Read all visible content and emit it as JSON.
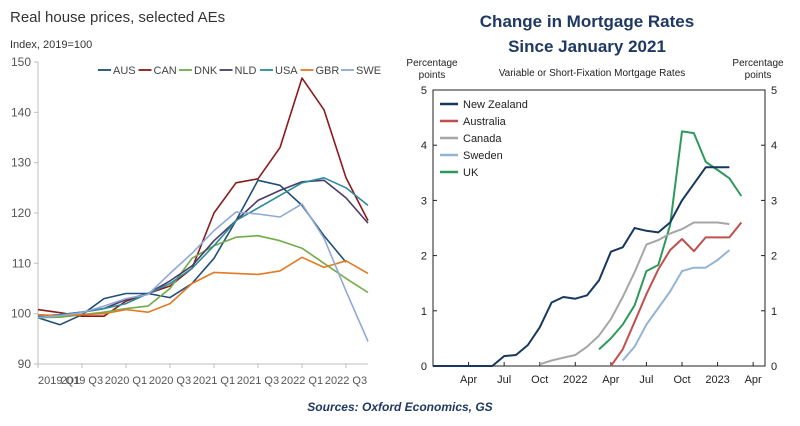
{
  "caption": "Sources: Oxford Economics, GS",
  "chart_data": [
    {
      "type": "line",
      "title": "Real house prices, selected AEs",
      "ylabel": "Index, 2019=100",
      "ylim": [
        90,
        150
      ],
      "yticks": [
        90,
        100,
        110,
        120,
        130,
        140,
        150
      ],
      "x_tick_labels": [
        "2019 Q1",
        "2019 Q3",
        "2020 Q1",
        "2020 Q3",
        "2021 Q1",
        "2021 Q3",
        "2022 Q1",
        "2022 Q3"
      ],
      "x": [
        "2019 Q1",
        "2019 Q2",
        "2019 Q3",
        "2019 Q4",
        "2020 Q1",
        "2020 Q2",
        "2020 Q3",
        "2020 Q4",
        "2021 Q1",
        "2021 Q2",
        "2021 Q3",
        "2021 Q4",
        "2022 Q1",
        "2022 Q2",
        "2022 Q3",
        "2022 Q4"
      ],
      "legend_position": "top",
      "series": [
        {
          "name": "AUS",
          "color": "#1f4e79",
          "values": [
            99.2,
            97.8,
            99.8,
            103.0,
            104.0,
            104.0,
            103.2,
            106.0,
            111.0,
            118.5,
            126.5,
            125.5,
            121.5,
            115.5,
            110.2,
            null
          ]
        },
        {
          "name": "CAN",
          "color": "#8b1a1a",
          "values": [
            100.8,
            100.2,
            99.5,
            99.5,
            102.5,
            104.0,
            105.5,
            109.0,
            120.0,
            126.0,
            126.8,
            133.0,
            146.8,
            140.5,
            127.0,
            118.5
          ]
        },
        {
          "name": "DNK",
          "color": "#70ad47",
          "values": [
            99.2,
            99.3,
            99.8,
            100.3,
            101.0,
            101.5,
            105.0,
            111.0,
            113.5,
            115.2,
            115.5,
            114.5,
            113.0,
            110.0,
            107.0,
            104.2
          ]
        },
        {
          "name": "NLD",
          "color": "#4a3b6b",
          "values": [
            99.5,
            99.8,
            100.3,
            101.0,
            102.8,
            104.0,
            106.5,
            109.5,
            114.5,
            118.5,
            122.5,
            124.5,
            126.2,
            126.5,
            123.0,
            118.0
          ]
        },
        {
          "name": "USA",
          "color": "#2e8b9a",
          "values": [
            99.5,
            99.8,
            100.3,
            101.0,
            102.0,
            104.0,
            106.0,
            109.0,
            113.5,
            118.5,
            121.0,
            123.5,
            126.0,
            127.0,
            125.0,
            121.5
          ]
        },
        {
          "name": "GBR",
          "color": "#e07b24",
          "values": [
            99.8,
            99.6,
            99.8,
            100.0,
            100.8,
            100.3,
            102.0,
            106.0,
            108.2,
            108.0,
            107.8,
            108.5,
            111.2,
            109.2,
            110.5,
            108.0
          ]
        },
        {
          "name": "SWE",
          "color": "#8fa8d8",
          "values": [
            99.2,
            99.6,
            100.2,
            101.5,
            103.0,
            103.8,
            108.0,
            112.0,
            116.5,
            120.2,
            119.8,
            119.2,
            121.8,
            115.0,
            104.5,
            94.5
          ]
        }
      ]
    },
    {
      "type": "line",
      "title": "Change in Mortgage Rates",
      "subtitle": "Since January 2021",
      "inner_title": "Variable or Short-Fixation Mortgage Rates",
      "ylabel_left": "Percentage points",
      "ylabel_right": "Percentage points",
      "ylim": [
        0,
        5
      ],
      "yticks": [
        0,
        1,
        2,
        3,
        4,
        5
      ],
      "x_tick_labels": [
        "Apr",
        "Jul",
        "Oct",
        "2022",
        "Apr",
        "Jul",
        "Oct",
        "2023",
        "Apr"
      ],
      "x_tick_months": [
        3,
        6,
        9,
        12,
        15,
        18,
        21,
        24,
        27
      ],
      "xlim_months": [
        0,
        28
      ],
      "legend_position": "top-left",
      "series": [
        {
          "name": "New Zealand",
          "color": "#17375e",
          "x_months": [
            0,
            4,
            5,
            6,
            7,
            8,
            9,
            10,
            11,
            12,
            13,
            14,
            15,
            16,
            17,
            18,
            19,
            20,
            21,
            22,
            23,
            24,
            25
          ],
          "values": [
            0,
            0,
            0,
            0.18,
            0.2,
            0.38,
            0.7,
            1.15,
            1.25,
            1.22,
            1.28,
            1.55,
            2.07,
            2.15,
            2.5,
            2.45,
            2.42,
            2.6,
            3.0,
            3.3,
            3.6,
            3.6,
            3.6
          ]
        },
        {
          "name": "Australia",
          "color": "#c0504d",
          "x_months": [
            15,
            16,
            17,
            18,
            19,
            20,
            21,
            22,
            23,
            24,
            25,
            26
          ],
          "values": [
            0,
            0.3,
            0.8,
            1.3,
            1.75,
            2.1,
            2.3,
            2.08,
            2.33,
            2.33,
            2.33,
            2.6
          ]
        },
        {
          "name": "Canada",
          "color": "#a6a6a6",
          "x_months": [
            9,
            10,
            11,
            12,
            13,
            14,
            15,
            16,
            17,
            18,
            19,
            20,
            21,
            22,
            23,
            24,
            25
          ],
          "values": [
            0.03,
            0.1,
            0.15,
            0.2,
            0.35,
            0.55,
            0.85,
            1.25,
            1.7,
            2.2,
            2.28,
            2.4,
            2.48,
            2.6,
            2.6,
            2.6,
            2.57
          ]
        },
        {
          "name": "Sweden",
          "color": "#95b3d7",
          "x_months": [
            16,
            17,
            18,
            19,
            20,
            21,
            22,
            23,
            24,
            25
          ],
          "values": [
            0.1,
            0.35,
            0.75,
            1.05,
            1.35,
            1.72,
            1.78,
            1.78,
            1.92,
            2.1
          ]
        },
        {
          "name": "UK",
          "color": "#2e9a5a",
          "x_months": [
            14,
            15,
            16,
            17,
            18,
            19,
            20,
            21,
            22,
            23,
            24,
            25,
            26
          ],
          "values": [
            0.3,
            0.5,
            0.75,
            1.1,
            1.72,
            1.83,
            2.55,
            4.25,
            4.22,
            3.7,
            3.55,
            3.4,
            3.08
          ]
        }
      ]
    }
  ]
}
